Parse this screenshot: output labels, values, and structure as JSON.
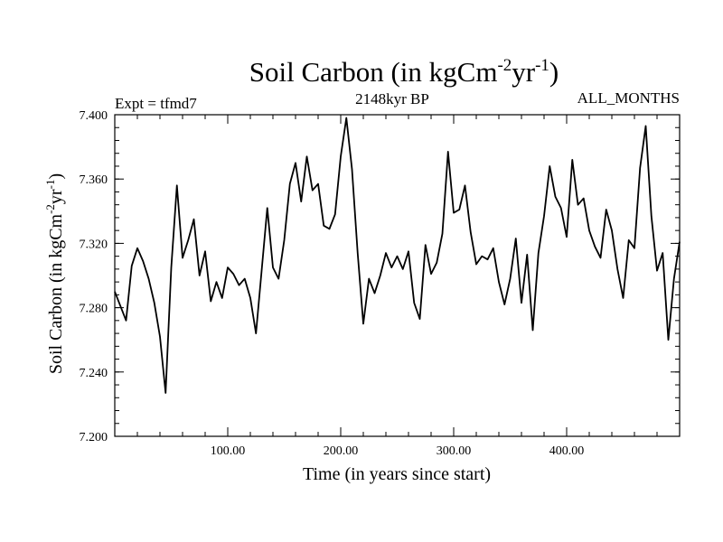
{
  "chart_data": {
    "type": "line",
    "title": "Soil Carbon (in kgCm-2yr-1)",
    "title_parts": {
      "main": "Soil Carbon (in kgCm",
      "exp1": "-2",
      "mid": "yr",
      "exp2": "-1",
      "close": ")"
    },
    "subtitle_left": "Expt = tfmd7",
    "subtitle_center": "2148kyr BP",
    "subtitle_right": "ALL_MONTHS",
    "xlabel": "Time (in years since start)",
    "ylabel": "Soil Carbon (in kgCm-2yr-1)",
    "ylabel_parts": {
      "main": "Soil Carbon (in kgCm",
      "exp1": "-2",
      "mid": "yr",
      "exp2": "-1",
      "close": ")"
    },
    "xlim": [
      0,
      500
    ],
    "ylim": [
      7.2,
      7.4
    ],
    "x_ticks": [
      100,
      200,
      300,
      400
    ],
    "x_tick_labels": [
      "100.00",
      "200.00",
      "300.00",
      "400.00"
    ],
    "y_ticks": [
      7.2,
      7.24,
      7.28,
      7.32,
      7.36,
      7.4
    ],
    "y_tick_labels": [
      "7.200",
      "7.240",
      "7.280",
      "7.320",
      "7.360",
      "7.400"
    ],
    "series": [
      {
        "name": "Soil Carbon",
        "color": "#000000",
        "x": [
          0,
          5,
          10,
          15,
          20,
          25,
          30,
          35,
          40,
          45,
          50,
          55,
          60,
          65,
          70,
          75,
          80,
          85,
          90,
          95,
          100,
          105,
          110,
          115,
          120,
          125,
          130,
          135,
          140,
          145,
          150,
          155,
          160,
          165,
          170,
          175,
          180,
          185,
          190,
          195,
          200,
          205,
          210,
          215,
          220,
          225,
          230,
          235,
          240,
          245,
          250,
          255,
          260,
          265,
          270,
          275,
          280,
          285,
          290,
          295,
          300,
          305,
          310,
          315,
          320,
          325,
          330,
          335,
          340,
          345,
          350,
          355,
          360,
          365,
          370,
          375,
          380,
          385,
          390,
          395,
          400,
          405,
          410,
          415,
          420,
          425,
          430,
          435,
          440,
          445,
          450,
          455,
          460,
          465,
          470,
          475,
          480,
          485,
          490,
          495,
          500
        ],
        "y": [
          7.29,
          7.281,
          7.272,
          7.306,
          7.317,
          7.309,
          7.298,
          7.283,
          7.262,
          7.227,
          7.305,
          7.356,
          7.311,
          7.322,
          7.335,
          7.3,
          7.315,
          7.284,
          7.296,
          7.286,
          7.305,
          7.301,
          7.294,
          7.298,
          7.286,
          7.264,
          7.303,
          7.342,
          7.305,
          7.298,
          7.322,
          7.357,
          7.37,
          7.346,
          7.374,
          7.353,
          7.357,
          7.331,
          7.329,
          7.338,
          7.374,
          7.398,
          7.366,
          7.314,
          7.27,
          7.298,
          7.289,
          7.3,
          7.314,
          7.305,
          7.312,
          7.304,
          7.315,
          7.283,
          7.273,
          7.319,
          7.301,
          7.308,
          7.326,
          7.377,
          7.339,
          7.341,
          7.356,
          7.327,
          7.307,
          7.312,
          7.31,
          7.317,
          7.296,
          7.282,
          7.298,
          7.323,
          7.283,
          7.313,
          7.266,
          7.314,
          7.337,
          7.368,
          7.349,
          7.342,
          7.324,
          7.372,
          7.344,
          7.348,
          7.328,
          7.318,
          7.311,
          7.341,
          7.328,
          7.304,
          7.286,
          7.322,
          7.317,
          7.367,
          7.393,
          7.337,
          7.303,
          7.314,
          7.26,
          7.298,
          7.321
        ]
      }
    ]
  }
}
